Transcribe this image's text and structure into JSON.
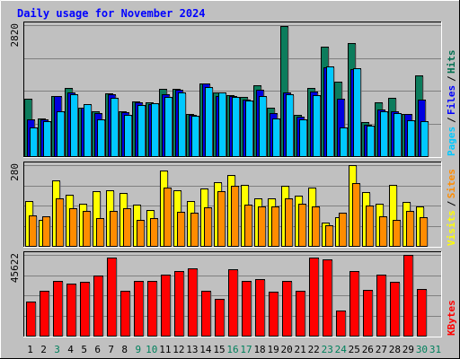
{
  "chart_data": {
    "type": "bar",
    "title": "Daily usage for November 2024",
    "categories": [
      "1",
      "2",
      "3",
      "4",
      "5",
      "6",
      "7",
      "8",
      "9",
      "10",
      "11",
      "12",
      "13",
      "14",
      "15",
      "16",
      "17",
      "18",
      "19",
      "20",
      "21",
      "22",
      "23",
      "24",
      "25",
      "26",
      "27",
      "28",
      "29",
      "30",
      "31"
    ],
    "weekend_days": [
      "3",
      "9",
      "10",
      "16",
      "17",
      "23",
      "24",
      "30",
      "31"
    ],
    "panels": [
      {
        "id": "pages-files-hits",
        "ymax": 2820,
        "ymax_label": "2820",
        "right_labels": [
          {
            "text": "Pages",
            "color": "#00c8ff"
          },
          {
            "text": "Files",
            "color": "#0000ff"
          },
          {
            "text": "Hits",
            "color": "#007050"
          }
        ],
        "series": [
          {
            "name": "Hits",
            "color": "#0c7c5c",
            "values": [
              1240,
              810,
              1300,
              1460,
              1050,
              960,
              1360,
              970,
              1180,
              1160,
              1440,
              1450,
              910,
              1570,
              1370,
              1320,
              1270,
              1530,
              1040,
              2810,
              890,
              1460,
              2360,
              1610,
              2430,
              740,
              1160,
              1250,
              900,
              1730,
              0
            ]
          },
          {
            "name": "Files",
            "color": "#0000e0",
            "values": [
              800,
              800,
              1300,
              1370,
              1050,
              930,
              1330,
              940,
              1150,
              1120,
              1330,
              1430,
              890,
              1560,
              1300,
              1300,
              1220,
              1420,
              920,
              1370,
              850,
              1400,
              1920,
              1230,
              1880,
              680,
              1010,
              960,
              900,
              1210,
              0
            ]
          },
          {
            "name": "Pages",
            "color": "#00c8ff",
            "values": [
              620,
              760,
              960,
              1340,
              1120,
              800,
              1250,
              880,
              1100,
              1130,
              1270,
              1380,
              870,
              1480,
              1370,
              1270,
              1200,
              1300,
              820,
              1340,
              800,
              1320,
              1930,
              610,
              1900,
              650,
              960,
              930,
              770,
              750,
              0
            ]
          }
        ]
      },
      {
        "id": "visits-sites",
        "ymax": 280,
        "ymax_label": "280",
        "right_labels": [
          {
            "text": "Visits",
            "color": "#ffff00"
          },
          {
            "text": "Sites",
            "color": "#ff8c00"
          }
        ],
        "series": [
          {
            "name": "Visits",
            "color": "#ffff00",
            "values": [
              154,
              90,
              226,
              177,
              146,
              190,
              194,
              185,
              144,
              125,
              261,
              194,
              155,
              200,
              220,
              245,
              211,
              166,
              166,
              208,
              173,
              203,
              82,
              99,
              279,
              187,
              146,
              211,
              151,
              136,
              0
            ]
          },
          {
            "name": "Sites",
            "color": "#ff8c00",
            "values": [
              106,
              102,
              166,
              131,
              122,
              97,
              120,
              131,
              91,
              95,
              202,
              118,
              115,
              134,
              190,
              208,
              142,
              136,
              136,
              166,
              147,
              138,
              72,
              115,
              218,
              140,
              104,
              89,
              121,
              101,
              0
            ]
          }
        ]
      },
      {
        "id": "kbytes",
        "ymax": 45622,
        "ymax_label": "45622",
        "right_labels": [
          {
            "text": "KBytes",
            "color": "#ff0000"
          }
        ],
        "series": [
          {
            "name": "KBytes",
            "color": "#ff0000",
            "values": [
              19500,
              25400,
              30900,
              29600,
              30300,
              34100,
              44200,
              25500,
              30800,
              30800,
              34300,
              36400,
              37800,
              25500,
              20700,
              37400,
              30800,
              32100,
              24800,
              31000,
              25300,
              44100,
              43300,
              14200,
              36600,
              25800,
              34400,
              30400,
              45500,
              26600,
              0
            ]
          }
        ]
      }
    ]
  }
}
